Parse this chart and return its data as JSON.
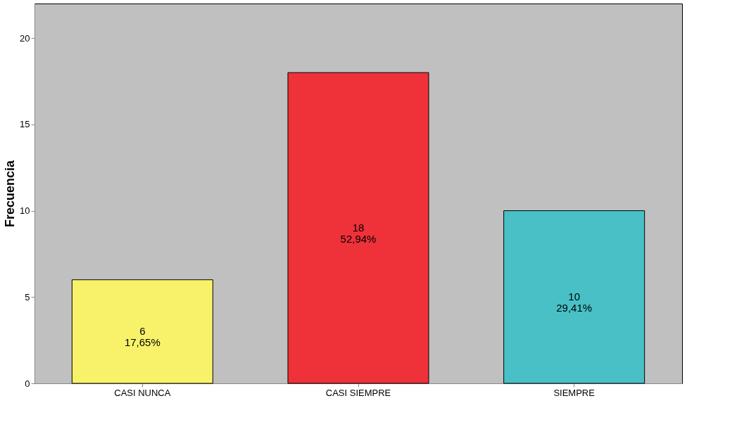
{
  "chart_data": {
    "type": "bar",
    "ylabel": "Frecuencia",
    "categories": [
      "CASI NUNCA",
      "CASI SIEMPRE",
      "SIEMPRE"
    ],
    "values": [
      6,
      18,
      10
    ],
    "colors": [
      "#f7f26a",
      "#ef3139",
      "#48c0c6"
    ],
    "value_labels": [
      "6\n17,65%",
      "18\n52,94%",
      "10\n29,41%"
    ],
    "ylim": [
      0,
      22
    ],
    "yticks": [
      0,
      5,
      10,
      15,
      20
    ],
    "grid": false
  }
}
